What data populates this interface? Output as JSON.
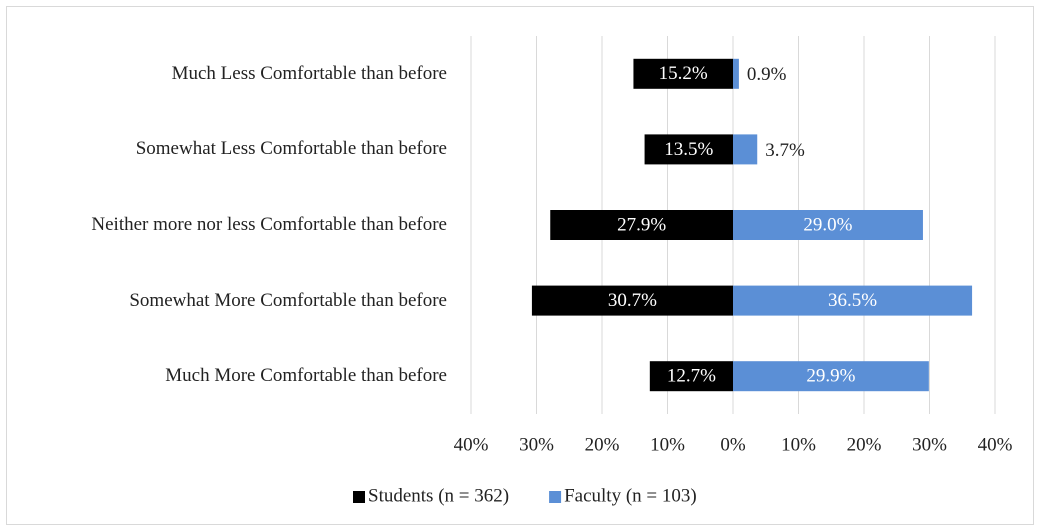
{
  "chart_data": {
    "type": "diverging_bar",
    "categories": [
      "Much Less Comfortable than before",
      "Somewhat Less Comfortable than before",
      "Neither more nor less Comfortable than before",
      "Somewhat More Comfortable than before",
      "Much More Comfortable than before"
    ],
    "series": [
      {
        "name": "Students (n = 362)",
        "color": "#000000",
        "values": [
          -15.2,
          -13.5,
          -27.9,
          -30.7,
          -12.7
        ],
        "value_labels": [
          "15.2%",
          "13.5%",
          "27.9%",
          "30.7%",
          "12.7%"
        ]
      },
      {
        "name": "Faculty (n = 103)",
        "color": "#5b8fd6",
        "values": [
          0.9,
          3.7,
          29.0,
          36.5,
          29.9
        ],
        "value_labels": [
          "0.9%",
          "3.7%",
          "29.0%",
          "36.5%",
          "29.9%"
        ]
      }
    ],
    "xlim": [
      -40,
      40
    ],
    "xticks": [
      {
        "value": -40,
        "label": "40%"
      },
      {
        "value": -30,
        "label": "30%"
      },
      {
        "value": -20,
        "label": "20%"
      },
      {
        "value": -10,
        "label": "10%"
      },
      {
        "value": 0,
        "label": "0%"
      },
      {
        "value": 10,
        "label": "10%"
      },
      {
        "value": 20,
        "label": "20%"
      },
      {
        "value": 30,
        "label": "30%"
      },
      {
        "value": 40,
        "label": "40%"
      }
    ],
    "grid": true,
    "legend": "bottom"
  }
}
